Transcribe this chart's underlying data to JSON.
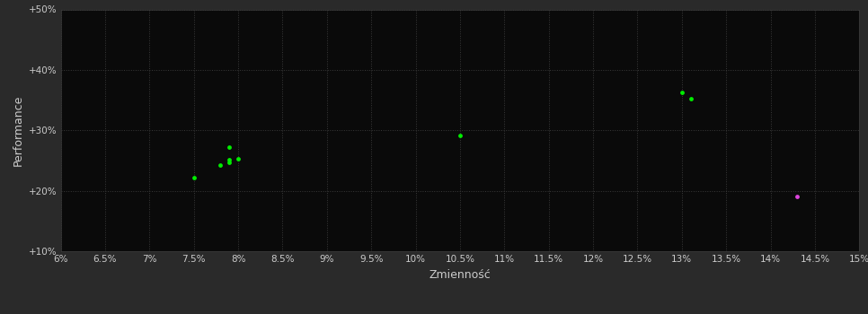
{
  "background_color": "#2a2a2a",
  "plot_bg_color": "#0a0a0a",
  "grid_color": "#3a3a3a",
  "xlabel": "Zmienność",
  "ylabel": "Performance",
  "xlabel_color": "#cccccc",
  "ylabel_color": "#cccccc",
  "tick_color": "#cccccc",
  "tick_fontsize": 7.5,
  "label_fontsize": 9,
  "xlim": [
    0.06,
    0.15
  ],
  "ylim": [
    0.1,
    0.5
  ],
  "xticks": [
    0.06,
    0.065,
    0.07,
    0.075,
    0.08,
    0.085,
    0.09,
    0.095,
    0.1,
    0.105,
    0.11,
    0.115,
    0.12,
    0.125,
    0.13,
    0.135,
    0.14,
    0.145,
    0.15
  ],
  "yticks": [
    0.1,
    0.2,
    0.3,
    0.4,
    0.5
  ],
  "ytick_labels": [
    "+10%",
    "+20%",
    "+30%",
    "+40%",
    "+50%"
  ],
  "green_points": [
    [
      0.075,
      0.221
    ],
    [
      0.078,
      0.243
    ],
    [
      0.079,
      0.247
    ],
    [
      0.079,
      0.251
    ],
    [
      0.08,
      0.253
    ],
    [
      0.079,
      0.272
    ],
    [
      0.105,
      0.291
    ],
    [
      0.13,
      0.363
    ],
    [
      0.131,
      0.353
    ]
  ],
  "magenta_points": [
    [
      0.143,
      0.191
    ]
  ],
  "green_color": "#00ee00",
  "magenta_color": "#dd44dd",
  "point_size": 12,
  "magenta_point_size": 12
}
